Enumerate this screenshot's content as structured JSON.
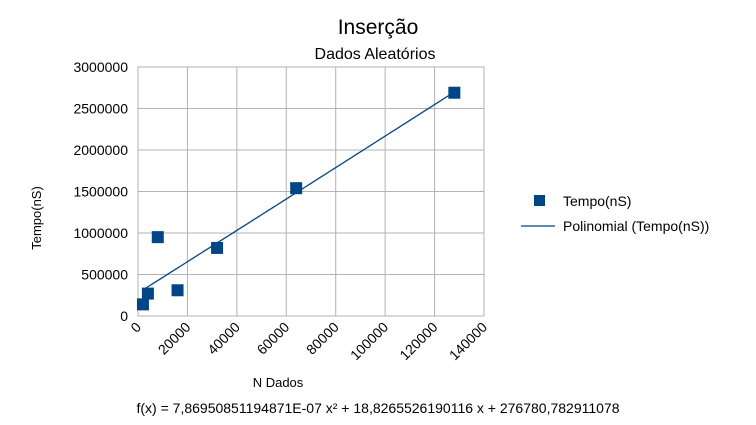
{
  "chart_data": {
    "type": "scatter",
    "title": "Inserção",
    "subtitle": "Dados Aleatórios",
    "xlabel": "N Dados",
    "ylabel": "Tempo(nS)",
    "xlim": [
      0,
      140000
    ],
    "ylim": [
      0,
      3000000
    ],
    "x_ticks": [
      0,
      20000,
      40000,
      60000,
      80000,
      100000,
      120000,
      140000
    ],
    "y_ticks": [
      0,
      500000,
      1000000,
      1500000,
      2000000,
      2500000,
      3000000
    ],
    "grid": true,
    "legend_position": "right",
    "series": [
      {
        "name": "Tempo(nS)",
        "kind": "points",
        "color": "#004586",
        "x": [
          2000,
          4000,
          8000,
          16000,
          32000,
          64000,
          128000
        ],
        "y": [
          140000,
          270000,
          950000,
          310000,
          820000,
          1540000,
          2690000
        ]
      },
      {
        "name": "Polinomial (Tempo(nS))",
        "kind": "trendline",
        "color": "#004586",
        "coefficients": {
          "a": 7.86950851194871e-07,
          "b": 18.8265526190116,
          "c": 276780.782911078
        },
        "x_range": [
          2000,
          128000
        ]
      }
    ],
    "equation": "f(x) = 7,86950851194871E-07 x² + 18,8265526190116 x + 276780,782911078"
  }
}
